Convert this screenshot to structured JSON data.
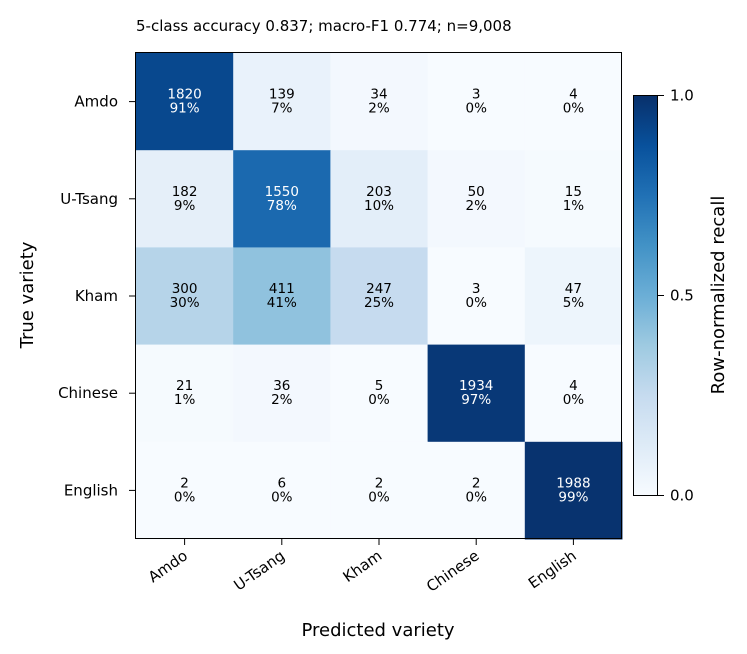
{
  "chart_data": {
    "type": "heatmap",
    "title": "5-class accuracy 0.837; macro-F1 0.774; n=9,008",
    "xlabel": "Predicted variety",
    "ylabel": "True variety",
    "x_categories": [
      "Amdo",
      "U-Tsang",
      "Kham",
      "Chinese",
      "English"
    ],
    "y_categories": [
      "Amdo",
      "U-Tsang",
      "Kham",
      "Chinese",
      "English"
    ],
    "counts": [
      [
        1820,
        139,
        34,
        3,
        4
      ],
      [
        182,
        1550,
        203,
        50,
        15
      ],
      [
        300,
        411,
        247,
        3,
        47
      ],
      [
        21,
        36,
        5,
        1934,
        4
      ],
      [
        2,
        6,
        2,
        2,
        1988
      ]
    ],
    "percent_labels": [
      [
        "91%",
        "7%",
        "2%",
        "0%",
        "0%"
      ],
      [
        "9%",
        "78%",
        "10%",
        "2%",
        "1%"
      ],
      [
        "30%",
        "41%",
        "25%",
        "0%",
        "5%"
      ],
      [
        "1%",
        "2%",
        "0%",
        "97%",
        "0%"
      ],
      [
        "0%",
        "0%",
        "0%",
        "0%",
        "99%"
      ]
    ],
    "recall": [
      [
        0.91,
        0.07,
        0.02,
        0.0,
        0.0
      ],
      [
        0.09,
        0.78,
        0.1,
        0.02,
        0.01
      ],
      [
        0.3,
        0.41,
        0.25,
        0.0,
        0.05
      ],
      [
        0.01,
        0.02,
        0.0,
        0.97,
        0.0
      ],
      [
        0.0,
        0.0,
        0.0,
        0.0,
        0.99
      ]
    ],
    "colorbar": {
      "label": "Row-normalized recall",
      "range": [
        0.0,
        1.0
      ],
      "ticks": [
        "0.0",
        "0.5",
        "1.0"
      ],
      "colormap": "Blues"
    }
  }
}
